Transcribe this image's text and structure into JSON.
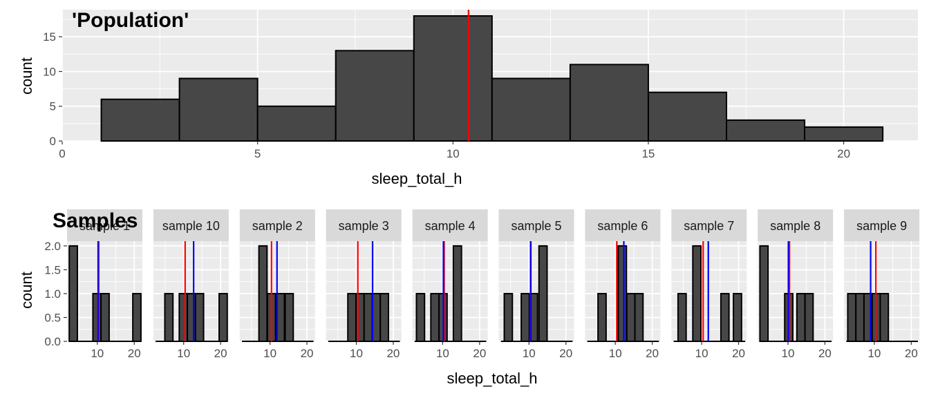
{
  "colors": {
    "panel_bg": "#EBEBEB",
    "grid": "#FFFFFF",
    "bar_fill": "#474747",
    "bar_stroke": "#000000",
    "population_line": "#FF0000",
    "sample_line": "#0000FF",
    "strip_bg": "#D9D9D9",
    "text": "#4D4D4D"
  },
  "chart_data": [
    {
      "type": "bar",
      "title": "'Population'",
      "xlabel": "sleep_total_h",
      "ylabel": "count",
      "xlim": [
        0,
        21.9
      ],
      "ylim": [
        0,
        18.9
      ],
      "xticks": [
        0,
        5,
        10,
        15,
        20
      ],
      "yticks": [
        0,
        5,
        10,
        15
      ],
      "bins": [
        {
          "x0": 1,
          "x1": 3,
          "count": 6
        },
        {
          "x0": 3,
          "x1": 5,
          "count": 9
        },
        {
          "x0": 5,
          "x1": 7,
          "count": 5
        },
        {
          "x0": 7,
          "x1": 9,
          "count": 13
        },
        {
          "x0": 9,
          "x1": 11,
          "count": 18
        },
        {
          "x0": 11,
          "x1": 13,
          "count": 9
        },
        {
          "x0": 13,
          "x1": 15,
          "count": 11
        },
        {
          "x0": 15,
          "x1": 17,
          "count": 7
        },
        {
          "x0": 17,
          "x1": 19,
          "count": 3
        },
        {
          "x0": 19,
          "x1": 21,
          "count": 2
        }
      ],
      "population_mean": 10.4,
      "grid": true
    },
    {
      "type": "bar",
      "title": "Samples",
      "xlabel": "sleep_total_h",
      "ylabel": "count",
      "xlim": [
        1.8,
        22.2
      ],
      "ylim": [
        0,
        2.1
      ],
      "xticks": [
        10,
        20
      ],
      "yticks": [
        0.0,
        0.5,
        1.0,
        1.5,
        2.0
      ],
      "ytick_labels": [
        "0.0",
        "0.5",
        "1.0",
        "1.5",
        "2.0"
      ],
      "population_mean": 10.4,
      "facets": [
        {
          "label": "sample 1",
          "sample_mean": 10.2,
          "bins": [
            {
              "x0": 2.4,
              "x1": 4.6,
              "count": 2
            },
            {
              "x0": 8.8,
              "x1": 11.0,
              "count": 1
            },
            {
              "x0": 11.0,
              "x1": 13.2,
              "count": 1
            },
            {
              "x0": 19.6,
              "x1": 21.8,
              "count": 1
            }
          ]
        },
        {
          "label": "sample 10",
          "sample_mean": 12.7,
          "bins": [
            {
              "x0": 4.9,
              "x1": 7.1,
              "count": 1
            },
            {
              "x0": 8.8,
              "x1": 11.0,
              "count": 1
            },
            {
              "x0": 11.0,
              "x1": 13.2,
              "count": 1
            },
            {
              "x0": 13.2,
              "x1": 15.4,
              "count": 1
            },
            {
              "x0": 19.6,
              "x1": 21.8,
              "count": 1
            }
          ]
        },
        {
          "label": "sample 2",
          "sample_mean": 11.9,
          "bins": [
            {
              "x0": 7.0,
              "x1": 9.2,
              "count": 2
            },
            {
              "x0": 9.3,
              "x1": 11.5,
              "count": 1
            },
            {
              "x0": 11.7,
              "x1": 13.9,
              "count": 1
            },
            {
              "x0": 14.1,
              "x1": 16.3,
              "count": 1
            }
          ]
        },
        {
          "label": "sample 3",
          "sample_mean": 14.4,
          "bins": [
            {
              "x0": 7.7,
              "x1": 9.9,
              "count": 1
            },
            {
              "x0": 9.9,
              "x1": 12.1,
              "count": 1
            },
            {
              "x0": 12.1,
              "x1": 14.3,
              "count": 1
            },
            {
              "x0": 14.3,
              "x1": 16.5,
              "count": 1
            },
            {
              "x0": 16.5,
              "x1": 18.7,
              "count": 1
            }
          ]
        },
        {
          "label": "sample 4",
          "sample_mean": 10.2,
          "bins": [
            {
              "x0": 2.9,
              "x1": 5.1,
              "count": 1
            },
            {
              "x0": 6.8,
              "x1": 9.0,
              "count": 1
            },
            {
              "x0": 9.0,
              "x1": 11.2,
              "count": 1
            },
            {
              "x0": 12.9,
              "x1": 15.1,
              "count": 2
            }
          ]
        },
        {
          "label": "sample 5",
          "sample_mean": 10.5,
          "bins": [
            {
              "x0": 3.3,
              "x1": 5.5,
              "count": 1
            },
            {
              "x0": 7.9,
              "x1": 10.1,
              "count": 1
            },
            {
              "x0": 10.1,
              "x1": 12.3,
              "count": 1
            },
            {
              "x0": 12.7,
              "x1": 14.9,
              "count": 2
            }
          ]
        },
        {
          "label": "sample 6",
          "sample_mean": 12.3,
          "bins": [
            {
              "x0": 5.3,
              "x1": 7.5,
              "count": 1
            },
            {
              "x0": 10.8,
              "x1": 13.0,
              "count": 2
            },
            {
              "x0": 13.1,
              "x1": 15.3,
              "count": 1
            },
            {
              "x0": 15.3,
              "x1": 17.5,
              "count": 1
            }
          ]
        },
        {
          "label": "sample 7",
          "sample_mean": 11.8,
          "bins": [
            {
              "x0": 3.6,
              "x1": 5.8,
              "count": 1
            },
            {
              "x0": 7.6,
              "x1": 9.8,
              "count": 2
            },
            {
              "x0": 15.2,
              "x1": 17.4,
              "count": 1
            },
            {
              "x0": 18.6,
              "x1": 20.8,
              "count": 1
            }
          ]
        },
        {
          "label": "sample 8",
          "sample_mean": 10.1,
          "bins": [
            {
              "x0": 2.4,
              "x1": 4.6,
              "count": 2
            },
            {
              "x0": 9.1,
              "x1": 11.3,
              "count": 1
            },
            {
              "x0": 12.4,
              "x1": 14.6,
              "count": 1
            },
            {
              "x0": 14.6,
              "x1": 16.8,
              "count": 1
            }
          ]
        },
        {
          "label": "sample 9",
          "sample_mean": 9.0,
          "bins": [
            {
              "x0": 2.8,
              "x1": 5.0,
              "count": 1
            },
            {
              "x0": 5.0,
              "x1": 7.2,
              "count": 1
            },
            {
              "x0": 7.2,
              "x1": 9.4,
              "count": 1
            },
            {
              "x0": 9.4,
              "x1": 11.6,
              "count": 1
            },
            {
              "x0": 11.6,
              "x1": 13.8,
              "count": 1
            }
          ]
        }
      ]
    }
  ]
}
